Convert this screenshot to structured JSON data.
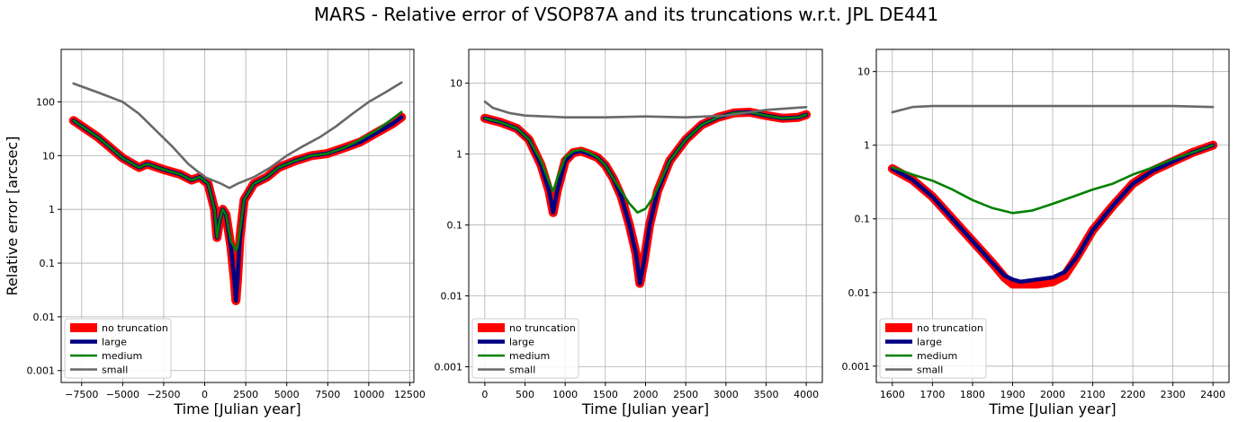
{
  "figure": {
    "title": "MARS - Relative error of VSOP87A and its truncations w.r.t. JPL DE441"
  },
  "legend": {
    "items": [
      {
        "label": "no truncation",
        "color": "#ff0000",
        "width": "thick"
      },
      {
        "label": "large",
        "color": "#000080",
        "width": "medium"
      },
      {
        "label": "medium",
        "color": "#008000",
        "width": "thin"
      },
      {
        "label": "small",
        "color": "#696969",
        "width": "thin"
      }
    ],
    "placement": "lower-left"
  },
  "chart_data": [
    {
      "type": "line",
      "title": "",
      "xlabel": "Time [Julian year]",
      "ylabel": "Relative error [arcsec]",
      "yscale": "log",
      "xlim": [
        -8750,
        12750
      ],
      "ylim": [
        0.0006,
        950
      ],
      "xticks": [
        -7500,
        -5000,
        -2500,
        0,
        2500,
        5000,
        7500,
        10000,
        12500
      ],
      "xtick_labels": [
        "−7500",
        "−5000",
        "−2500",
        "0",
        "2500",
        "5000",
        "7500",
        "10000",
        "12500"
      ],
      "yticks": [
        0.001,
        0.01,
        0.1,
        1,
        10,
        100
      ],
      "ytick_labels": [
        "0.001",
        "0.01",
        "0.1",
        "1",
        "10",
        "100"
      ],
      "grid": true,
      "series": [
        {
          "name": "no truncation",
          "x": [
            -8000,
            -6500,
            -5000,
            -4000,
            -3500,
            -2500,
            -1500,
            -800,
            -300,
            200,
            600,
            750,
            900,
            1100,
            1300,
            1600,
            1800,
            1900,
            2000,
            2150,
            2400,
            3000,
            3800,
            4500,
            5500,
            6500,
            7500,
            8500,
            9500,
            10500,
            11500,
            12000
          ],
          "y": [
            45,
            22,
            9,
            6,
            7,
            5.5,
            4.5,
            3.5,
            4,
            3,
            1,
            0.3,
            0.6,
            1,
            0.8,
            0.2,
            0.05,
            0.02,
            0.05,
            0.3,
            1.5,
            3,
            4,
            6,
            8,
            10,
            11,
            14,
            18,
            27,
            40,
            52
          ]
        },
        {
          "name": "large",
          "x": [
            -8000,
            -6500,
            -5000,
            -4000,
            -3500,
            -2500,
            -1500,
            -800,
            -300,
            200,
            600,
            750,
            900,
            1100,
            1300,
            1600,
            1800,
            1900,
            2000,
            2150,
            2400,
            3000,
            3800,
            4500,
            5500,
            6500,
            7500,
            8500,
            9500,
            10500,
            11500,
            12000
          ],
          "y": [
            45,
            22,
            9,
            6,
            7,
            5.5,
            4.5,
            3.5,
            4,
            3,
            1,
            0.3,
            0.6,
            1,
            0.8,
            0.2,
            0.05,
            0.02,
            0.05,
            0.3,
            1.5,
            3,
            4,
            6,
            8,
            10,
            11,
            14,
            18,
            27,
            40,
            52
          ]
        },
        {
          "name": "medium",
          "x": [
            -8000,
            -6500,
            -5000,
            -4000,
            -3500,
            -2500,
            -1500,
            -800,
            -300,
            200,
            600,
            750,
            900,
            1100,
            1300,
            1600,
            1800,
            1900,
            2000,
            2150,
            2400,
            3000,
            3800,
            4500,
            5500,
            6500,
            7500,
            8500,
            9500,
            10500,
            11500,
            12000
          ],
          "y": [
            45,
            22,
            9,
            6,
            7,
            5.5,
            4.5,
            3.5,
            4,
            3,
            1,
            0.3,
            0.6,
            1,
            0.8,
            0.25,
            0.2,
            0.17,
            0.2,
            0.4,
            1.5,
            3,
            4,
            6,
            8,
            10,
            11,
            14,
            20,
            30,
            50,
            65
          ]
        },
        {
          "name": "small",
          "x": [
            -8000,
            -6500,
            -5000,
            -4000,
            -3000,
            -2000,
            -1000,
            0,
            1000,
            1500,
            2000,
            3000,
            4000,
            5000,
            6000,
            7000,
            8000,
            9000,
            10000,
            11000,
            12000
          ],
          "y": [
            220,
            150,
            100,
            60,
            30,
            15,
            7,
            4,
            3,
            2.5,
            3,
            4,
            6,
            10,
            15,
            22,
            35,
            60,
            100,
            150,
            230
          ]
        }
      ]
    },
    {
      "type": "line",
      "title": "",
      "xlabel": "Time [Julian year]",
      "ylabel": "",
      "yscale": "log",
      "xlim": [
        -200,
        4200
      ],
      "ylim": [
        0.0006,
        30
      ],
      "xticks": [
        0,
        500,
        1000,
        1500,
        2000,
        2500,
        3000,
        3500,
        4000
      ],
      "xtick_labels": [
        "0",
        "500",
        "1000",
        "1500",
        "2000",
        "2500",
        "3000",
        "3500",
        "4000"
      ],
      "yticks": [
        0.001,
        0.01,
        0.1,
        1,
        10
      ],
      "ytick_labels": [
        "0.001",
        "0.01",
        "0.1",
        "1",
        "10"
      ],
      "grid": true,
      "series": [
        {
          "name": "no truncation",
          "x": [
            0,
            200,
            400,
            550,
            700,
            800,
            850,
            900,
            1000,
            1100,
            1200,
            1300,
            1400,
            1500,
            1600,
            1700,
            1800,
            1880,
            1930,
            1980,
            2050,
            2150,
            2300,
            2500,
            2700,
            2900,
            3100,
            3300,
            3500,
            3700,
            3900,
            4000
          ],
          "y": [
            3.2,
            2.8,
            2.3,
            1.6,
            0.7,
            0.3,
            0.15,
            0.3,
            0.8,
            1.05,
            1.1,
            1.0,
            0.9,
            0.7,
            0.45,
            0.25,
            0.1,
            0.04,
            0.015,
            0.03,
            0.1,
            0.3,
            0.8,
            1.6,
            2.6,
            3.3,
            3.8,
            3.9,
            3.5,
            3.2,
            3.3,
            3.6
          ]
        },
        {
          "name": "large",
          "x": [
            0,
            200,
            400,
            550,
            700,
            800,
            850,
            900,
            1000,
            1100,
            1200,
            1300,
            1400,
            1500,
            1600,
            1700,
            1800,
            1880,
            1930,
            1980,
            2050,
            2150,
            2300,
            2500,
            2700,
            2900,
            3100,
            3300,
            3500,
            3700,
            3900,
            4000
          ],
          "y": [
            3.2,
            2.8,
            2.3,
            1.6,
            0.7,
            0.3,
            0.15,
            0.3,
            0.8,
            1.05,
            1.1,
            1.0,
            0.9,
            0.7,
            0.45,
            0.25,
            0.1,
            0.04,
            0.015,
            0.03,
            0.1,
            0.3,
            0.8,
            1.6,
            2.6,
            3.3,
            3.8,
            3.9,
            3.5,
            3.2,
            3.3,
            3.6
          ]
        },
        {
          "name": "medium",
          "x": [
            0,
            200,
            400,
            550,
            700,
            800,
            850,
            900,
            1000,
            1100,
            1200,
            1300,
            1400,
            1500,
            1600,
            1700,
            1800,
            1900,
            2000,
            2100,
            2200,
            2300,
            2500,
            2700,
            2900,
            3100,
            3300,
            3500,
            3700,
            3900,
            4000
          ],
          "y": [
            3.2,
            2.8,
            2.3,
            1.6,
            0.8,
            0.4,
            0.3,
            0.45,
            0.9,
            1.1,
            1.15,
            1.05,
            0.9,
            0.7,
            0.45,
            0.3,
            0.2,
            0.15,
            0.17,
            0.25,
            0.45,
            0.8,
            1.6,
            2.6,
            3.3,
            3.8,
            3.9,
            3.5,
            3.2,
            3.3,
            3.6
          ]
        },
        {
          "name": "small",
          "x": [
            0,
            100,
            300,
            500,
            1000,
            1500,
            2000,
            2500,
            3000,
            3500,
            4000
          ],
          "y": [
            5.5,
            4.5,
            3.8,
            3.5,
            3.3,
            3.3,
            3.4,
            3.3,
            3.5,
            4.2,
            4.6
          ]
        }
      ]
    },
    {
      "type": "line",
      "title": "",
      "xlabel": "Time [Julian year]",
      "ylabel": "",
      "yscale": "log",
      "xlim": [
        1560,
        2440
      ],
      "ylim": [
        0.0006,
        20
      ],
      "xticks": [
        1600,
        1700,
        1800,
        1900,
        2000,
        2100,
        2200,
        2300,
        2400
      ],
      "xtick_labels": [
        "1600",
        "1700",
        "1800",
        "1900",
        "2000",
        "2100",
        "2200",
        "2300",
        "2400"
      ],
      "yticks": [
        0.001,
        0.01,
        0.1,
        1,
        10
      ],
      "ytick_labels": [
        "0.001",
        "0.01",
        "0.1",
        "1",
        "10"
      ],
      "grid": true,
      "series": [
        {
          "name": "no truncation",
          "x": [
            1600,
            1650,
            1700,
            1750,
            1800,
            1850,
            1880,
            1900,
            1920,
            1960,
            2000,
            2030,
            2060,
            2100,
            2150,
            2200,
            2250,
            2300,
            2350,
            2400
          ],
          "y": [
            0.48,
            0.34,
            0.2,
            0.1,
            0.05,
            0.025,
            0.016,
            0.013,
            0.013,
            0.013,
            0.014,
            0.017,
            0.03,
            0.07,
            0.15,
            0.3,
            0.45,
            0.6,
            0.8,
            1.0
          ]
        },
        {
          "name": "large",
          "x": [
            1600,
            1650,
            1700,
            1750,
            1800,
            1850,
            1880,
            1900,
            1920,
            1960,
            2000,
            2030,
            2060,
            2100,
            2150,
            2200,
            2250,
            2300,
            2350,
            2400
          ],
          "y": [
            0.48,
            0.34,
            0.2,
            0.1,
            0.05,
            0.025,
            0.017,
            0.015,
            0.014,
            0.015,
            0.016,
            0.019,
            0.03,
            0.07,
            0.15,
            0.3,
            0.45,
            0.6,
            0.8,
            1.0
          ]
        },
        {
          "name": "medium",
          "x": [
            1600,
            1650,
            1700,
            1750,
            1800,
            1850,
            1900,
            1950,
            2000,
            2050,
            2100,
            2150,
            2200,
            2250,
            2300,
            2350,
            2400
          ],
          "y": [
            0.5,
            0.4,
            0.33,
            0.25,
            0.18,
            0.14,
            0.12,
            0.13,
            0.16,
            0.2,
            0.25,
            0.3,
            0.4,
            0.5,
            0.65,
            0.8,
            1.0
          ]
        },
        {
          "name": "small",
          "x": [
            1600,
            1650,
            1700,
            1800,
            1900,
            2000,
            2100,
            2200,
            2300,
            2400
          ],
          "y": [
            2.8,
            3.3,
            3.4,
            3.4,
            3.4,
            3.4,
            3.4,
            3.4,
            3.4,
            3.3
          ]
        }
      ]
    }
  ]
}
